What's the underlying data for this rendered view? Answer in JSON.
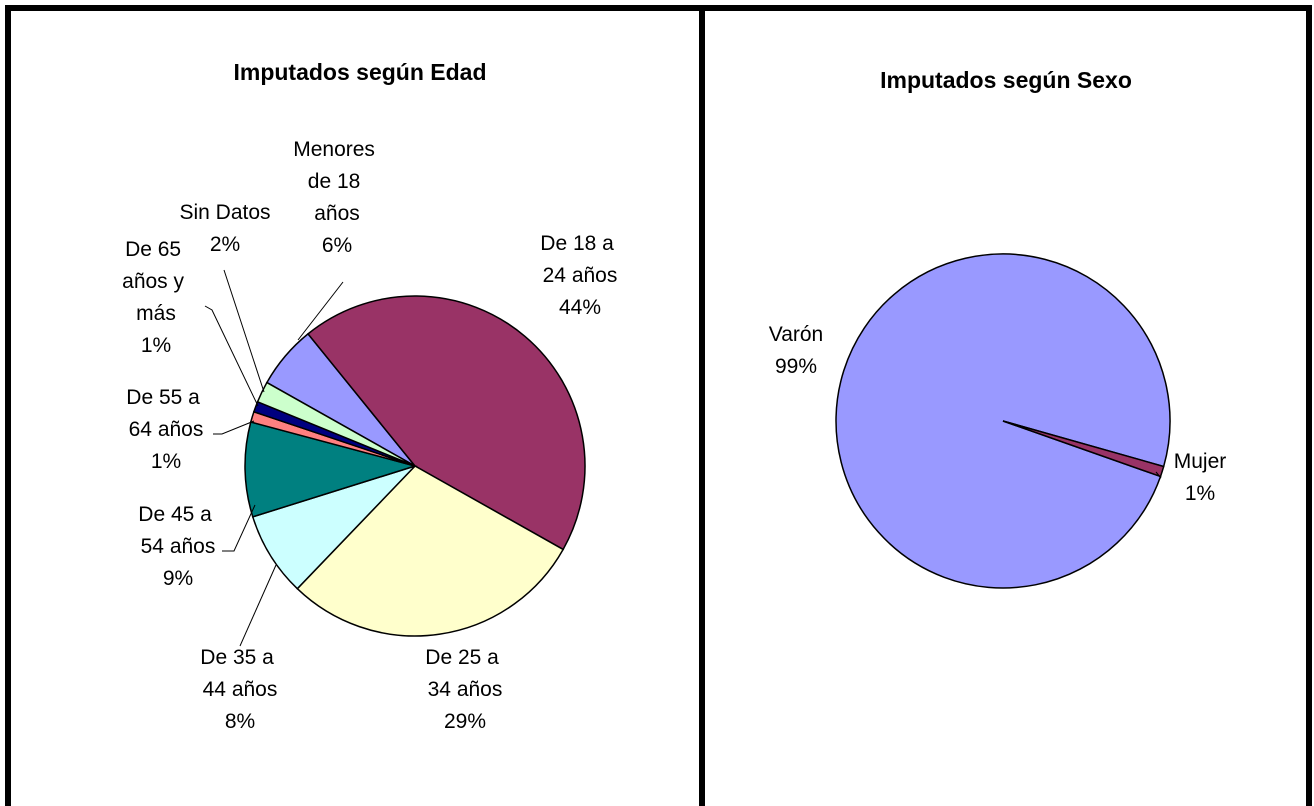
{
  "chart_data": [
    {
      "type": "pie",
      "title": "Imputados según Edad",
      "categories": [
        "Menores de 18 años",
        "De 18 a 24 años",
        "De 25 a 34 años",
        "De 35 a 44 años",
        "De 45 a 54 años",
        "De 55 a 64 años",
        "De 65 años y más",
        "Sin Datos"
      ],
      "values": [
        6,
        44,
        29,
        8,
        9,
        1,
        1,
        2
      ],
      "value_labels": [
        "6%",
        "44%",
        "29%",
        "8%",
        "9%",
        "1%",
        "1%",
        "2%"
      ],
      "colors": [
        "#9999ff",
        "#993366",
        "#ffffcc",
        "#ccffff",
        "#008080",
        "#ff8080",
        "#000080",
        "#ccffcc"
      ]
    },
    {
      "type": "pie",
      "title": "Imputados según Sexo",
      "categories": [
        "Varón",
        "Mujer"
      ],
      "values": [
        99,
        1
      ],
      "value_labels": [
        "99%",
        "1%"
      ],
      "colors": [
        "#9999ff",
        "#993366"
      ]
    }
  ]
}
